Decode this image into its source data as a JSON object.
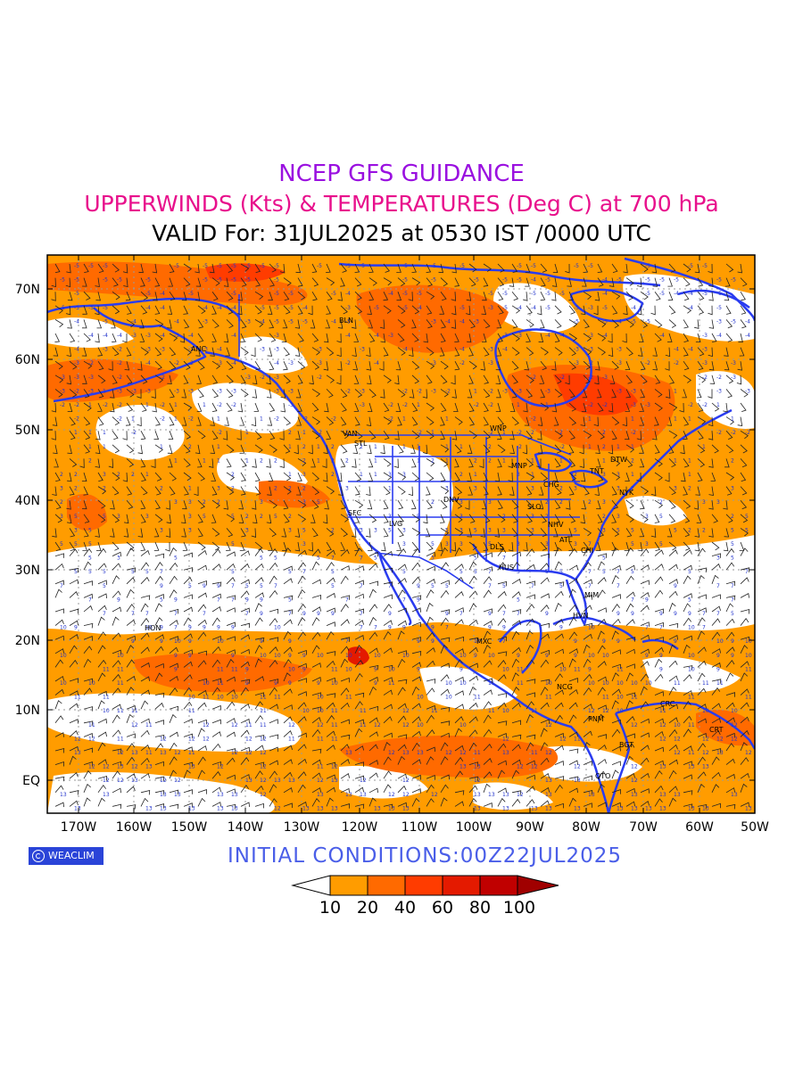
{
  "header": {
    "title": "NCEP GFS GUIDANCE",
    "subtitle": "UPPERWINDS (Kts) & TEMPERATURES (Deg C) at 700 hPa",
    "valid": "VALID For: 31JUL2025 at 0530 IST /0000 UTC"
  },
  "axes": {
    "lat_labels": [
      "70N",
      "60N",
      "50N",
      "40N",
      "30N",
      "20N",
      "10N",
      "EQ"
    ],
    "lon_labels": [
      "170W",
      "160W",
      "150W",
      "140W",
      "130W",
      "120W",
      "110W",
      "100W",
      "90W",
      "80W",
      "70W",
      "60W",
      "50W"
    ]
  },
  "cities": [
    {
      "name": "ANC"
    },
    {
      "name": "BLN"
    },
    {
      "name": "VAN"
    },
    {
      "name": "STL"
    },
    {
      "name": "WNP"
    },
    {
      "name": "MNP"
    },
    {
      "name": "DTW"
    },
    {
      "name": "TNT"
    },
    {
      "name": "CHG"
    },
    {
      "name": "NYK"
    },
    {
      "name": "SFC"
    },
    {
      "name": "DNV"
    },
    {
      "name": "SLO"
    },
    {
      "name": "LVG"
    },
    {
      "name": "NHV"
    },
    {
      "name": "ATL"
    },
    {
      "name": "DLS"
    },
    {
      "name": "CHI"
    },
    {
      "name": "HUS"
    },
    {
      "name": "MIM"
    },
    {
      "name": "HON"
    },
    {
      "name": "HVN"
    },
    {
      "name": "MXC"
    },
    {
      "name": "NCG"
    },
    {
      "name": "CRC"
    },
    {
      "name": "PNM"
    },
    {
      "name": "CRT"
    },
    {
      "name": "BGT"
    },
    {
      "name": "QTO"
    }
  ],
  "legend": {
    "labels": [
      "10",
      "20",
      "40",
      "60",
      "80",
      "100"
    ],
    "colors": [
      "#ffffff",
      "#ff9c00",
      "#ff6a00",
      "#ff3c00",
      "#e41a00",
      "#c00000",
      "#a00000"
    ]
  },
  "footer": {
    "logo_text": "WEACLIM",
    "initial_conditions": "INITIAL CONDITIONS:00Z22JUL2025"
  },
  "colors": {
    "title": "#9a10e0",
    "subtitle": "#e8108c",
    "coast": "#2a3cf0",
    "orange": "#ff9c00",
    "dark_orange": "#ff6a00"
  }
}
